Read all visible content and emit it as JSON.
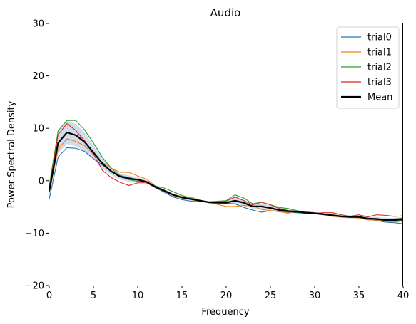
{
  "chart_data": {
    "type": "line",
    "title": "Audio",
    "xlabel": "Frequency",
    "ylabel": "Power Spectral Density",
    "xlim": [
      0,
      40
    ],
    "ylim": [
      -20,
      30
    ],
    "xticks": [
      0,
      5,
      10,
      15,
      20,
      25,
      30,
      35,
      40
    ],
    "yticks": [
      -20,
      -10,
      0,
      10,
      20,
      30
    ],
    "legend_position": "top-right",
    "x": [
      0,
      1,
      2,
      3,
      4,
      5,
      6,
      7,
      8,
      9,
      10,
      11,
      12,
      13,
      14,
      15,
      16,
      17,
      18,
      19,
      20,
      21,
      22,
      23,
      24,
      25,
      26,
      27,
      28,
      29,
      30,
      31,
      32,
      33,
      34,
      35,
      36,
      37,
      38,
      39,
      40
    ],
    "series": [
      {
        "name": "trial0",
        "color": "#1f77b4",
        "values": [
          -3.5,
          4.5,
          6.3,
          6.2,
          5.6,
          4.2,
          3.0,
          1.8,
          1.0,
          0.6,
          0.2,
          -0.3,
          -1.3,
          -2.2,
          -3.1,
          -3.6,
          -3.9,
          -4.0,
          -4.1,
          -4.2,
          -4.3,
          -4.4,
          -5.1,
          -5.6,
          -6.0,
          -5.7,
          -5.9,
          -6.0,
          -6.1,
          -6.2,
          -6.3,
          -6.5,
          -6.6,
          -6.8,
          -6.9,
          -7.0,
          -7.3,
          -7.6,
          -7.9,
          -8.0,
          -8.2
        ]
      },
      {
        "name": "trial1",
        "color": "#ff7f0e",
        "values": [
          -2.0,
          6.0,
          8.0,
          7.5,
          6.7,
          5.0,
          3.5,
          2.4,
          1.6,
          1.6,
          0.9,
          0.3,
          -1.0,
          -1.8,
          -2.6,
          -3.0,
          -3.1,
          -3.7,
          -4.1,
          -4.5,
          -4.9,
          -4.9,
          -4.7,
          -4.8,
          -5.5,
          -5.7,
          -5.9,
          -6.2,
          -5.8,
          -5.9,
          -6.1,
          -6.4,
          -6.8,
          -6.9,
          -7.0,
          -7.1,
          -7.5,
          -7.5,
          -7.7,
          -7.9,
          -7.6
        ]
      },
      {
        "name": "trial2",
        "color": "#2ca02c",
        "values": [
          -1.0,
          9.5,
          11.5,
          11.5,
          9.7,
          7.2,
          4.5,
          2.4,
          0.9,
          0.2,
          -0.1,
          -0.2,
          -1.0,
          -1.4,
          -2.1,
          -2.8,
          -3.3,
          -3.8,
          -4.0,
          -3.9,
          -3.8,
          -2.7,
          -3.3,
          -4.4,
          -4.1,
          -4.6,
          -5.1,
          -5.3,
          -5.7,
          -6.1,
          -6.3,
          -6.4,
          -6.7,
          -6.9,
          -7.0,
          -7.0,
          -7.3,
          -7.4,
          -7.6,
          -7.3,
          -7.1
        ]
      },
      {
        "name": "trial3",
        "color": "#d62728",
        "values": [
          -1.5,
          8.8,
          10.9,
          9.6,
          7.6,
          5.1,
          2.0,
          0.6,
          -0.3,
          -0.9,
          -0.4,
          -0.4,
          -1.3,
          -2.0,
          -2.8,
          -3.2,
          -3.5,
          -3.7,
          -4.1,
          -4.0,
          -3.9,
          -3.1,
          -3.8,
          -4.6,
          -4.1,
          -4.6,
          -5.3,
          -5.7,
          -5.8,
          -6.3,
          -6.2,
          -6.1,
          -6.1,
          -6.5,
          -6.8,
          -6.5,
          -6.9,
          -6.5,
          -6.6,
          -6.8,
          -6.7
        ]
      },
      {
        "name": "Mean",
        "color": "#000000",
        "values": [
          -2.0,
          7.2,
          9.2,
          8.7,
          7.4,
          5.4,
          3.3,
          1.8,
          0.8,
          0.4,
          0.2,
          -0.2,
          -1.2,
          -1.9,
          -2.7,
          -3.2,
          -3.5,
          -3.8,
          -4.1,
          -4.2,
          -4.2,
          -3.8,
          -4.2,
          -4.9,
          -4.9,
          -5.2,
          -5.6,
          -5.8,
          -5.9,
          -6.1,
          -6.2,
          -6.4,
          -6.6,
          -6.8,
          -6.9,
          -6.9,
          -7.2,
          -7.3,
          -7.5,
          -7.5,
          -7.4
        ]
      }
    ],
    "band": {
      "name": "mean-confidence-band",
      "color": "#b0c4de",
      "half_width": [
        1.0,
        2.0,
        2.2,
        2.1,
        1.8,
        1.3,
        1.0,
        0.7,
        0.6,
        0.6,
        0.5,
        0.3,
        0.2,
        0.2,
        0.3,
        0.3,
        0.3,
        0.2,
        0.2,
        0.2,
        0.3,
        0.6,
        0.6,
        0.4,
        0.6,
        0.5,
        0.4,
        0.4,
        0.3,
        0.3,
        0.2,
        0.2,
        0.3,
        0.3,
        0.3,
        0.3,
        0.3,
        0.4,
        0.4,
        0.4,
        0.5
      ]
    }
  }
}
